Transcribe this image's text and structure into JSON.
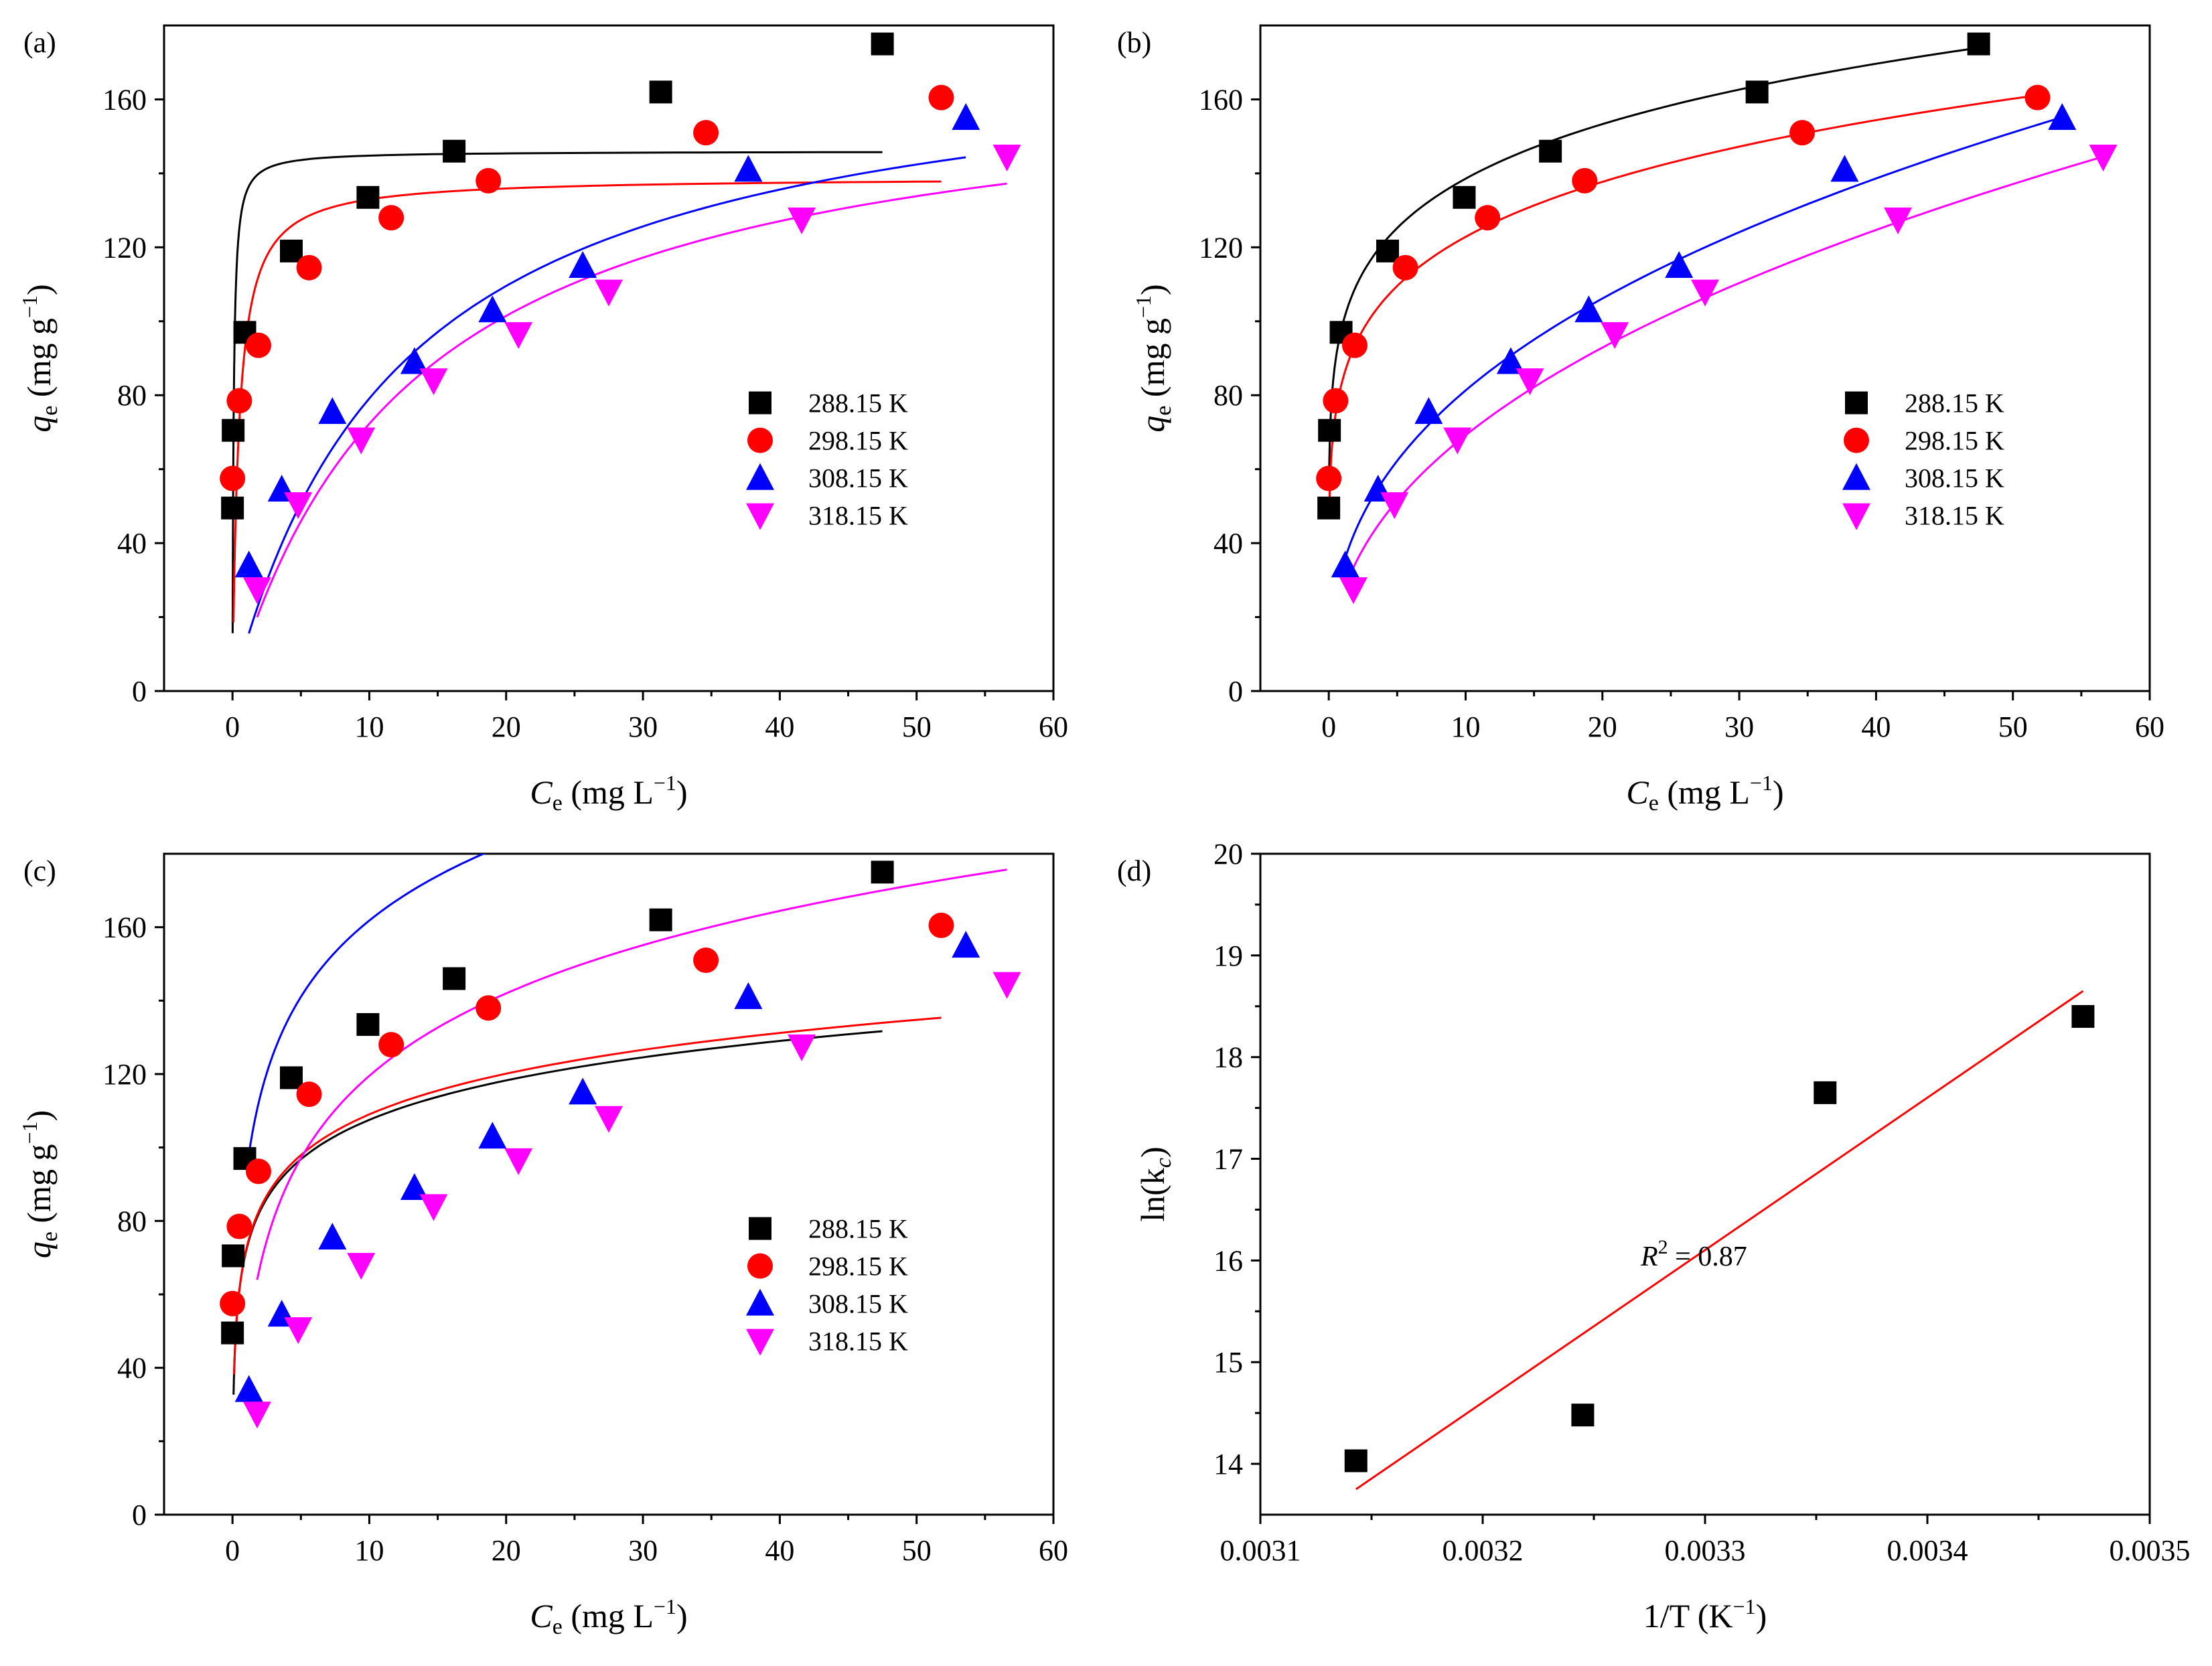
{
  "figure": {
    "colors": {
      "288.15 K": "#000000",
      "298.15 K": "#ff0000",
      "308.15 K": "#0000ff",
      "318.15 K": "#ff00ff"
    }
  },
  "chart_data": [
    {
      "panel": "(a)",
      "type": "scatter",
      "xlabel": {
        "main": "C",
        "sub": "e",
        "rest": " (mg L",
        "sup": "−1",
        "close": ")"
      },
      "ylabel": {
        "main": "q",
        "sub": "e",
        "rest": " (mg g",
        "sup": "−1",
        "close": ")"
      },
      "xlim": [
        -5,
        60
      ],
      "ylim": [
        0,
        180
      ],
      "xticks": [
        0,
        10,
        20,
        30,
        40,
        50,
        60
      ],
      "yticks": [
        0,
        40,
        80,
        120,
        160
      ],
      "legend_position": "right-middle",
      "series": [
        {
          "name": "288.15 K",
          "marker": "square",
          "color": "#000000",
          "x": [
            0.0,
            0.05,
            0.9,
            4.3,
            9.9,
            16.2,
            31.3,
            47.5
          ],
          "y": [
            49.5,
            70.5,
            97,
            119,
            133.5,
            146,
            162,
            175
          ],
          "fit": {
            "model": "langmuir",
            "qm": 146,
            "K": 12,
            "xrange": [
              0.01,
              47.5
            ]
          }
        },
        {
          "name": "298.15 K",
          "marker": "circle",
          "color": "#ff0000",
          "x": [
            0.0,
            0.5,
            1.9,
            5.6,
            11.6,
            18.7,
            34.6,
            51.8
          ],
          "y": [
            57.5,
            78.5,
            93.5,
            114.5,
            128,
            138,
            151,
            160.5
          ],
          "fit": {
            "model": "langmuir",
            "qm": 139,
            "K": 2.2,
            "xrange": [
              0.07,
              51.8
            ]
          }
        },
        {
          "name": "308.15 K",
          "marker": "triangle-up",
          "color": "#0000ff",
          "x": [
            1.2,
            3.6,
            7.3,
            13.3,
            19,
            25.6,
            37.7,
            53.6
          ],
          "y": [
            34,
            54.5,
            75.5,
            89,
            103,
            115,
            141,
            155
          ],
          "fit": {
            "model": "langmuir",
            "qm": 178,
            "K": 0.08,
            "xrange": [
              1.2,
              53.6
            ]
          }
        },
        {
          "name": "318.15 K",
          "marker": "triangle-down",
          "color": "#ff00ff",
          "x": [
            1.8,
            4.8,
            9.4,
            14.7,
            20.9,
            27.5,
            41.6,
            56.6
          ],
          "y": [
            27.5,
            50.5,
            68,
            84,
            96.5,
            108,
            127.5,
            144.5
          ],
          "fit": {
            "model": "langmuir",
            "qm": 170,
            "K": 0.074,
            "xrange": [
              1.8,
              56.6
            ]
          }
        }
      ]
    },
    {
      "panel": "(b)",
      "type": "scatter",
      "xlabel": {
        "main": "C",
        "sub": "e",
        "rest": " (mg L",
        "sup": "−1",
        "close": ")"
      },
      "ylabel": {
        "main": "q",
        "sub": "e",
        "rest": " (mg g",
        "sup": "−1",
        "close": ")"
      },
      "xlim": [
        -5,
        60
      ],
      "ylim": [
        0,
        180
      ],
      "xticks": [
        0,
        10,
        20,
        30,
        40,
        50,
        60
      ],
      "yticks": [
        0,
        40,
        80,
        120,
        160
      ],
      "legend_position": "right-middle",
      "series": [
        {
          "name": "288.15 K",
          "marker": "square",
          "color": "#000000",
          "x": [
            0.0,
            0.05,
            0.9,
            4.3,
            9.9,
            16.2,
            31.3,
            47.5
          ],
          "y": [
            49.5,
            70.5,
            97,
            119,
            133.5,
            146,
            162,
            175
          ],
          "fit": {
            "model": "freundlich",
            "Kf": 99,
            "n": 0.146,
            "xrange": [
              0.02,
              47.5
            ]
          }
        },
        {
          "name": "298.15 K",
          "marker": "circle",
          "color": "#ff0000",
          "x": [
            0.0,
            0.5,
            1.9,
            5.6,
            11.6,
            18.7,
            34.6,
            51.8
          ],
          "y": [
            57.5,
            78.5,
            93.5,
            114.5,
            128,
            138,
            151,
            160.5
          ],
          "fit": {
            "model": "freundlich",
            "Kf": 84,
            "n": 0.165,
            "xrange": [
              0.05,
              51.8
            ]
          }
        },
        {
          "name": "308.15 K",
          "marker": "triangle-up",
          "color": "#0000ff",
          "x": [
            1.2,
            3.6,
            7.3,
            13.3,
            19,
            25.6,
            37.7,
            53.6
          ],
          "y": [
            34,
            54.5,
            75.5,
            89,
            103,
            115,
            141,
            155
          ],
          "fit": {
            "model": "freundlich",
            "Kf": 33.5,
            "n": 0.385,
            "xrange": [
              1.2,
              53.6
            ]
          }
        },
        {
          "name": "318.15 K",
          "marker": "triangle-down",
          "color": "#ff00ff",
          "x": [
            1.8,
            4.8,
            9.4,
            14.7,
            20.9,
            27.5,
            41.6,
            56.6
          ],
          "y": [
            27.5,
            50.5,
            68,
            84,
            96.5,
            108,
            127.5,
            144.5
          ],
          "fit": {
            "model": "freundlich",
            "Kf": 26,
            "n": 0.425,
            "xrange": [
              1.8,
              56.6
            ]
          }
        }
      ]
    },
    {
      "panel": "(c)",
      "type": "scatter",
      "xlabel": {
        "main": "C",
        "sub": "e",
        "rest": " (mg L",
        "sup": "−1",
        "close": ")"
      },
      "ylabel": {
        "main": "q",
        "sub": "e",
        "rest": " (mg g",
        "sup": "−1",
        "close": ")"
      },
      "xlim": [
        -5,
        60
      ],
      "ylim": [
        0,
        180
      ],
      "xticks": [
        0,
        10,
        20,
        30,
        40,
        50,
        60
      ],
      "yticks": [
        0,
        40,
        80,
        120,
        160
      ],
      "legend_position": "right-middle",
      "series": [
        {
          "name": "288.15 K",
          "marker": "square",
          "color": "#000000",
          "x": [
            0.0,
            0.05,
            0.9,
            4.3,
            9.9,
            16.2,
            31.3,
            47.5
          ],
          "y": [
            49.5,
            70.5,
            97,
            119,
            133.5,
            146,
            162,
            175
          ],
          "fit": {
            "model": "temkin",
            "A": 103,
            "B": 15.5,
            "xrange": [
              0.08,
              47.5
            ]
          }
        },
        {
          "name": "298.15 K",
          "marker": "circle",
          "color": "#ff0000",
          "x": [
            0.0,
            0.5,
            1.9,
            5.6,
            11.6,
            18.7,
            34.6,
            51.8
          ],
          "y": [
            57.5,
            78.5,
            93.5,
            114.5,
            128,
            138,
            151,
            160.5
          ],
          "fit": {
            "model": "temkin",
            "A": 91,
            "B": 16,
            "xrange": [
              0.12,
              51.8
            ]
          }
        },
        {
          "name": "308.15 K",
          "marker": "triangle-up",
          "color": "#0000ff",
          "x": [
            1.2,
            3.6,
            7.3,
            13.3,
            19,
            25.6,
            37.7,
            53.6
          ],
          "y": [
            34,
            54.5,
            75.5,
            89,
            103,
            115,
            141,
            155
          ],
          "fit": {
            "model": "temkin",
            "A": 22,
            "B": 30,
            "xrange": [
              1.2,
              53.6
            ]
          }
        },
        {
          "name": "318.15 K",
          "marker": "triangle-down",
          "color": "#ff00ff",
          "x": [
            1.8,
            4.8,
            9.4,
            14.7,
            20.9,
            27.5,
            41.6,
            56.6
          ],
          "y": [
            27.5,
            50.5,
            68,
            84,
            96.5,
            108,
            127.5,
            144.5
          ],
          "fit": {
            "model": "temkin",
            "A": 4,
            "B": 32.4,
            "xrange": [
              1.8,
              56.6
            ]
          }
        }
      ]
    },
    {
      "panel": "(d)",
      "type": "scatter",
      "xlabel": {
        "main": "1/T (K",
        "sup": "−1",
        "close": ")"
      },
      "ylabel": {
        "main": "ln(k",
        "sub": "c",
        "close": ")"
      },
      "xlim": [
        0.0031,
        0.0035
      ],
      "ylim": [
        13.5,
        20
      ],
      "xticks": [
        0.0031,
        0.0032,
        0.0033,
        0.0034,
        0.0035
      ],
      "xtick_labels": [
        "0.0031",
        "0.0032",
        "0.0033",
        "0.0034",
        "0.0035"
      ],
      "yticks": [
        14,
        15,
        16,
        17,
        18,
        19,
        20
      ],
      "annotation": {
        "main": "R",
        "sup": "2",
        "rest": " = 0.87",
        "x": 0.003295,
        "y": 15.95
      },
      "series": [
        {
          "name": "ln(kc)",
          "marker": "square",
          "color": "#000000",
          "x": [
            0.003143,
            0.003245,
            0.003354,
            0.00347
          ],
          "y": [
            14.03,
            14.48,
            17.65,
            18.4
          ],
          "fit": {
            "model": "linear",
            "color": "#ff0000",
            "x0": 0.003143,
            "y0": 13.75,
            "x1": 0.00347,
            "y1": 18.65
          }
        }
      ]
    }
  ]
}
